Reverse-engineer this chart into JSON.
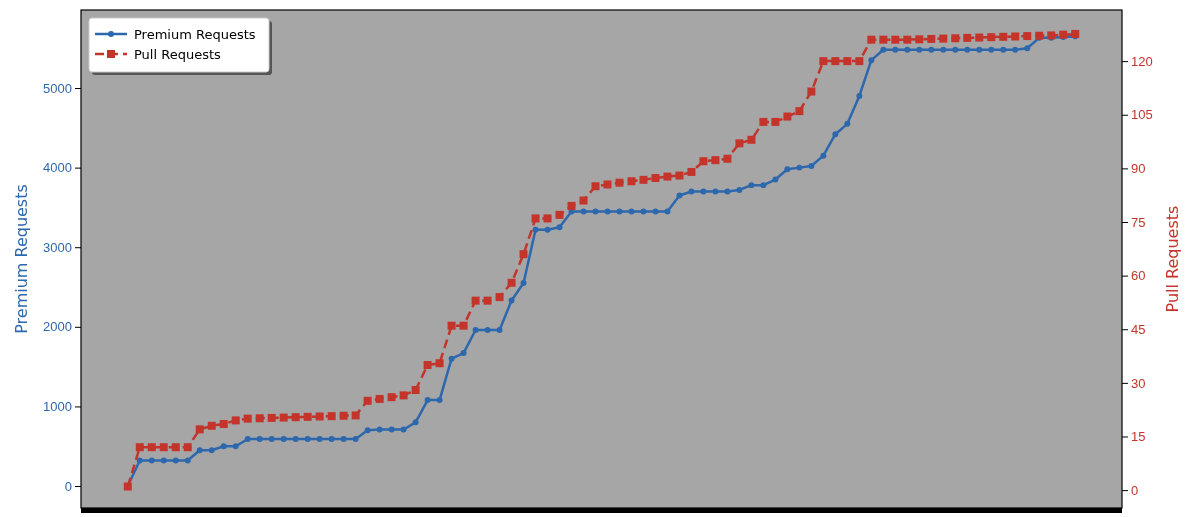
{
  "chart_data": {
    "type": "line",
    "ylabel": "Premium Requests",
    "y2label": "Pull Requests",
    "categories": [
      null,
      null,
      null,
      null,
      null,
      null,
      null,
      null,
      null,
      null,
      null,
      null,
      null,
      null,
      null,
      null,
      null,
      null,
      null,
      null,
      null,
      null,
      null,
      null,
      null,
      null,
      null,
      null,
      null,
      null,
      null,
      null,
      null,
      null,
      null,
      null,
      null,
      null,
      null,
      null,
      null,
      null,
      null,
      null,
      null,
      null,
      null,
      null,
      null,
      null,
      null,
      null,
      null,
      null,
      null,
      null,
      null,
      null,
      null,
      null,
      null,
      null,
      null,
      null,
      null,
      null,
      null,
      null,
      null,
      null,
      null,
      null,
      null,
      null,
      null,
      null,
      null,
      null,
      null,
      null
    ],
    "series": [
      {
        "name": "Premium Requests",
        "color": "#2e68ac",
        "marker": "circle",
        "line_style": "solid",
        "values": [
          0,
          320,
          320,
          320,
          320,
          320,
          450,
          450,
          500,
          500,
          590,
          590,
          590,
          590,
          590,
          590,
          590,
          590,
          590,
          590,
          700,
          710,
          710,
          710,
          800,
          1080,
          1080,
          1600,
          1670,
          1960,
          1960,
          1960,
          2330,
          2550,
          3220,
          3220,
          3250,
          3450,
          3450,
          3450,
          3450,
          3450,
          3450,
          3450,
          3450,
          3450,
          3650,
          3700,
          3700,
          3700,
          3700,
          3720,
          3780,
          3780,
          3850,
          3980,
          4000,
          4020,
          4150,
          4420,
          4550,
          4900,
          5350,
          5480,
          5480,
          5480,
          5480,
          5480,
          5480,
          5480,
          5480,
          5480,
          5480,
          5480,
          5480,
          5500,
          5630,
          5630,
          5640,
          5650
        ]
      },
      {
        "name": "Pull Requests",
        "color": "#c4342a",
        "marker": "square",
        "line_style": "dashed",
        "axis": "y2",
        "values": [
          1,
          12,
          12,
          12,
          12,
          12,
          17,
          18,
          18.5,
          19.5,
          20,
          20.1,
          20.2,
          20.3,
          20.4,
          20.5,
          20.6,
          20.7,
          20.8,
          20.9,
          25,
          25.5,
          26,
          26.5,
          28,
          35,
          35.5,
          46,
          46,
          53,
          53,
          54,
          58,
          66,
          76,
          76,
          77,
          79.5,
          81,
          85,
          85.5,
          86,
          86.4,
          86.8,
          87.3,
          87.7,
          88,
          89,
          92,
          92.3,
          92.7,
          97,
          98,
          103,
          103,
          104.5,
          106,
          111.5,
          120,
          120,
          120,
          120,
          126,
          126,
          126,
          126,
          126.1,
          126.2,
          126.3,
          126.4,
          126.5,
          126.6,
          126.7,
          126.8,
          126.9,
          127,
          127.1,
          127.2,
          127.4,
          127.6
        ]
      }
    ],
    "ylim": [
      -276,
      5980
    ],
    "yticks": [
      0,
      1000,
      2000,
      3000,
      4000,
      5000
    ],
    "y2lim": [
      -5,
      134.3
    ],
    "y2ticks": [
      0,
      15,
      30,
      45,
      60,
      75,
      90,
      105,
      120
    ],
    "tick_labels": "y",
    "legend": "top left",
    "grid": false
  }
}
